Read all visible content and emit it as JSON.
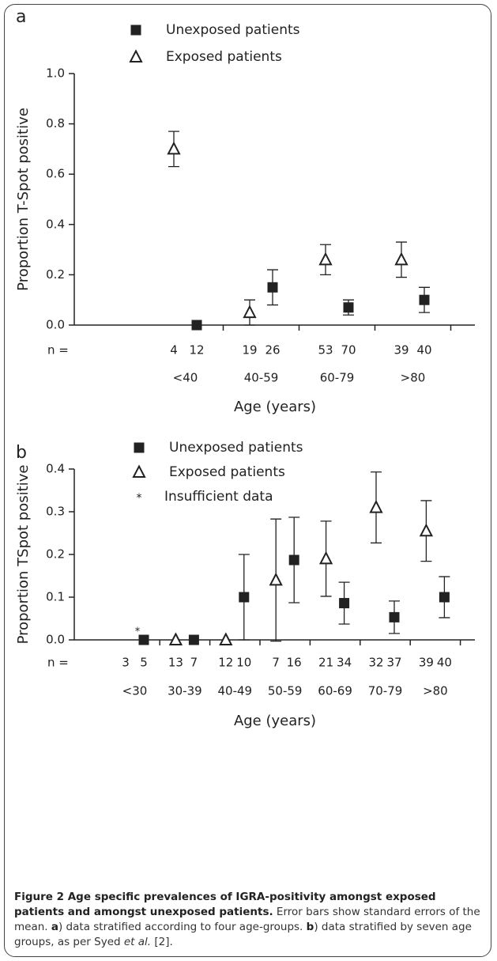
{
  "chart_data": [
    {
      "type": "errorbar",
      "title": "a",
      "ylabel": "Proportion T-Spot positive",
      "xlabel": "Age (years)",
      "n_label": "n =",
      "categories": [
        "<40",
        "40-59",
        "60-79",
        ">80"
      ],
      "ylim": [
        0,
        1.0
      ],
      "yticks": [
        {
          "value": 0,
          "label": "0.0"
        },
        {
          "value": 0.2,
          "label": "0.2"
        },
        {
          "value": 0.4,
          "label": "0.4"
        },
        {
          "value": 0.6,
          "label": "0.6"
        },
        {
          "value": 0.8,
          "label": "0.8"
        },
        {
          "value": 1.0,
          "label": "1.0"
        }
      ],
      "series": [
        {
          "name": "Unexposed patients",
          "marker": "square",
          "color": "#222222",
          "values": [
            0,
            0.15,
            0.07,
            0.1
          ],
          "errors": [
            0,
            0.07,
            0.03,
            0.05
          ],
          "n": [
            12,
            26,
            70,
            40
          ]
        },
        {
          "name": "Exposed patients",
          "marker": "triangle",
          "color": "#222222",
          "values": [
            0.7,
            0.05,
            0.26,
            0.26
          ],
          "errors": [
            0.07,
            0.05,
            0.06,
            0.07
          ],
          "n": [
            4,
            19,
            53,
            39
          ]
        }
      ]
    },
    {
      "type": "errorbar",
      "title": "b",
      "ylabel": "Proportion TSpot positive",
      "xlabel": "Age (years)",
      "n_label": "n =",
      "categories": [
        "<30",
        "30-39",
        "40-49",
        "50-59",
        "60-69",
        "70-79",
        ">80"
      ],
      "ylim": [
        0,
        0.4
      ],
      "yticks": [
        {
          "value": 0,
          "label": "0.0"
        },
        {
          "value": 0.1,
          "label": "0.1"
        },
        {
          "value": 0.2,
          "label": "0.2"
        },
        {
          "value": 0.3,
          "label": "0.3"
        },
        {
          "value": 0.4,
          "label": "0.4"
        }
      ],
      "insufficient": {
        "marker": "*",
        "label": "Insufficient data"
      },
      "series": [
        {
          "name": "Unexposed patients",
          "marker": "square",
          "color": "#222222",
          "values": [
            0,
            0,
            0.1,
            0.187,
            0.086,
            0.053,
            0.1
          ],
          "errors": [
            0,
            0,
            0.1,
            0.1,
            0.049,
            0.038,
            0.048
          ],
          "n": [
            5,
            7,
            10,
            16,
            34,
            37,
            40
          ]
        },
        {
          "name": "Exposed patients",
          "marker": "triangle",
          "color": "#222222",
          "values": [
            null,
            0,
            0,
            0.14,
            0.19,
            0.31,
            0.255
          ],
          "errors": [
            null,
            0,
            0,
            0.143,
            0.088,
            0.083,
            0.071
          ],
          "n": [
            3,
            13,
            12,
            7,
            21,
            32,
            39
          ]
        }
      ]
    }
  ],
  "caption": {
    "title": "Figure 2 Age specific prevalences of IGRA-positivity amongst exposed patients and amongst unexposed patients.",
    "text": " Error bars show standard errors of the mean. ",
    "a_label": "a",
    "a_text": ") data stratified according to four age-groups. ",
    "b_label": "b",
    "b_text": ") data stratified by seven age groups, as per Syed ",
    "b_italic": "et al.",
    "b_end": " [2]."
  }
}
